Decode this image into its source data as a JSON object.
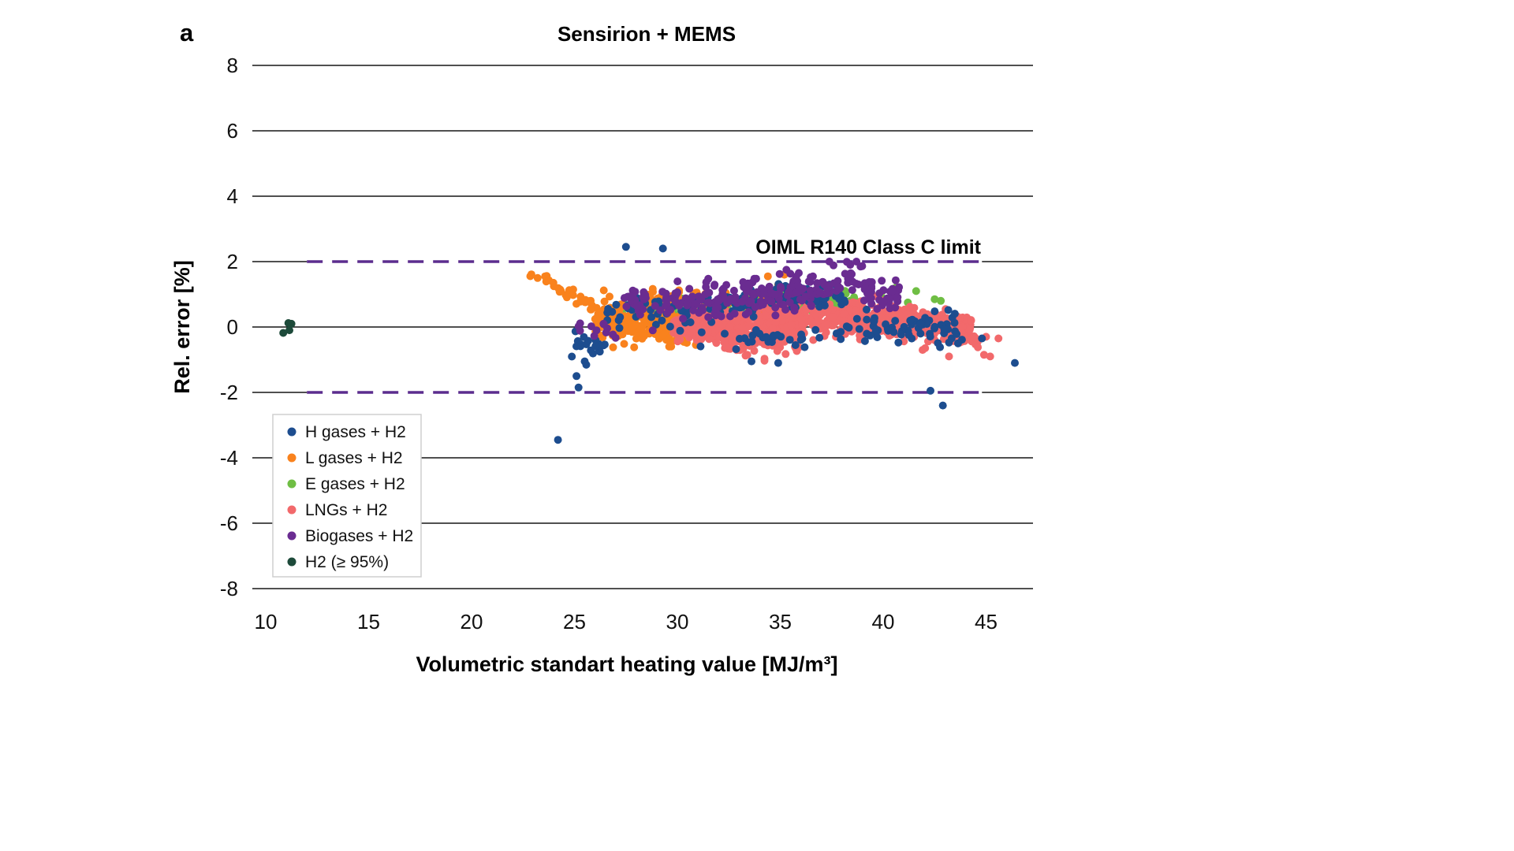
{
  "figure": {
    "panel_label": "a",
    "title": "Sensirion + MEMS"
  },
  "chart_data": {
    "type": "scatter",
    "title": "Sensirion + MEMS",
    "xlabel": "Volumetric standart heating value [MJ/m³]",
    "ylabel": "Rel. error [%]",
    "xlim": [
      9.35,
      47.3
    ],
    "ylim": [
      -8,
      8
    ],
    "xticks": [
      10,
      15,
      20,
      25,
      30,
      35,
      40,
      45
    ],
    "yticks": [
      -8,
      -6,
      -4,
      -2,
      0,
      2,
      4,
      6,
      8
    ],
    "grid": "horizontal",
    "legend_position": "lower left",
    "marker_radius_px": 5,
    "limit_lines": {
      "label": "OIML R140 Class C limit",
      "values": [
        2,
        -2
      ],
      "x_span": [
        12.0,
        44.8
      ],
      "color": "#5b2d8e",
      "style": "dashed"
    },
    "series": [
      {
        "name": "H gases + H2",
        "color": "#1d4d8f",
        "z": 4,
        "clusters": [
          {
            "n": 20,
            "x": [
              24.8,
              26.6
            ],
            "y": [
              -0.45,
              -0.55
            ],
            "sd": 0.22
          },
          {
            "n": 45,
            "x": [
              26.5,
              30.5
            ],
            "y": [
              0.45,
              0.6
            ],
            "sd": 0.28
          },
          {
            "n": 40,
            "x": [
              30.5,
              34.5
            ],
            "y": [
              0.7,
              0.8
            ],
            "sd": 0.22
          },
          {
            "n": 55,
            "x": [
              34.5,
              38.3
            ],
            "y": [
              0.9,
              1.0
            ],
            "sd": 0.2
          },
          {
            "n": 30,
            "x": [
              31.0,
              38.0
            ],
            "y": [
              -0.3,
              -0.4
            ],
            "sd": 0.12
          },
          {
            "n": 45,
            "x": [
              38.0,
              43.5
            ],
            "y": [
              0.25,
              0.0
            ],
            "sd": 0.22
          },
          {
            "n": 20,
            "x": [
              39.0,
              44.2
            ],
            "y": [
              -0.3,
              -0.4
            ],
            "sd": 0.15
          }
        ],
        "points": [
          [
            27.5,
            2.45
          ],
          [
            29.3,
            2.4
          ],
          [
            24.2,
            -3.45
          ],
          [
            25.2,
            -1.85
          ],
          [
            25.1,
            -1.5
          ],
          [
            25.5,
            -1.05
          ],
          [
            33.6,
            -1.05
          ],
          [
            34.9,
            -1.1
          ],
          [
            42.3,
            -1.95
          ],
          [
            42.9,
            -2.4
          ],
          [
            46.4,
            -1.1
          ],
          [
            44.8,
            -0.35
          ],
          [
            36.9,
            1.32
          ],
          [
            37.4,
            1.3
          ],
          [
            35.0,
            1.25
          ]
        ]
      },
      {
        "name": "L gases + H2",
        "color": "#f9821d",
        "z": 2,
        "clusters": [
          {
            "n": 30,
            "x": [
              22.8,
              26.2
            ],
            "y": [
              1.7,
              0.6
            ],
            "sd": 0.1
          },
          {
            "n": 200,
            "x": [
              26.0,
              30.6
            ],
            "y": [
              0.2,
              0.1
            ],
            "sd": 0.28
          },
          {
            "n": 45,
            "x": [
              28.5,
              31.5
            ],
            "y": [
              0.85,
              0.8
            ],
            "sd": 0.15
          },
          {
            "n": 55,
            "x": [
              30.5,
              35.8
            ],
            "y": [
              0.75,
              0.7
            ],
            "sd": 0.18
          }
        ],
        "points": [
          [
            34.4,
            1.55
          ],
          [
            35.2,
            1.6
          ],
          [
            34.9,
            1.3
          ],
          [
            30.9,
            -0.55
          ],
          [
            29.6,
            -0.6
          ],
          [
            27.9,
            -0.62
          ]
        ]
      },
      {
        "name": "E gases + H2",
        "color": "#6fbe44",
        "z": 1,
        "clusters": [
          {
            "n": 70,
            "x": [
              27.2,
              30.2
            ],
            "y": [
              0.55,
              0.5
            ],
            "sd": 0.15
          },
          {
            "n": 70,
            "x": [
              30.2,
              33.6
            ],
            "y": [
              0.45,
              0.5
            ],
            "sd": 0.15
          },
          {
            "n": 60,
            "x": [
              33.6,
              36.1
            ],
            "y": [
              0.55,
              0.65
            ],
            "sd": 0.17
          },
          {
            "n": 70,
            "x": [
              36.1,
              38.7
            ],
            "y": [
              0.8,
              0.65
            ],
            "sd": 0.18
          }
        ],
        "points": [
          [
            40.6,
            1.2
          ],
          [
            41.6,
            1.1
          ],
          [
            42.5,
            0.85
          ],
          [
            42.8,
            0.8
          ],
          [
            39.9,
            0.95
          ],
          [
            41.2,
            0.75
          ]
        ]
      },
      {
        "name": "LNGs + H2",
        "color": "#f2696b",
        "z": 3,
        "clusters": [
          {
            "n": 160,
            "x": [
              29.8,
              33.0
            ],
            "y": [
              0.05,
              0.0
            ],
            "sd": 0.26
          },
          {
            "n": 200,
            "x": [
              32.0,
              36.0
            ],
            "y": [
              -0.1,
              -0.15
            ],
            "sd": 0.33
          },
          {
            "n": 240,
            "x": [
              34.0,
              39.0
            ],
            "y": [
              0.25,
              0.3
            ],
            "sd": 0.28
          },
          {
            "n": 200,
            "x": [
              38.0,
              42.0
            ],
            "y": [
              0.25,
              0.15
            ],
            "sd": 0.24
          },
          {
            "n": 150,
            "x": [
              41.0,
              44.3
            ],
            "y": [
              0.1,
              0.0
            ],
            "sd": 0.2
          },
          {
            "n": 30,
            "x": [
              43.4,
              44.6
            ],
            "y": [
              -0.2,
              -0.35
            ],
            "sd": 0.18
          }
        ],
        "points": [
          [
            44.9,
            -0.85
          ],
          [
            45.2,
            -0.9
          ],
          [
            44.6,
            -0.62
          ],
          [
            45.6,
            -0.35
          ],
          [
            43.2,
            -0.9
          ],
          [
            33.4,
            -0.85
          ],
          [
            45.0,
            -0.3
          ]
        ]
      },
      {
        "name": "Biogases + H2",
        "color": "#6a2c91",
        "z": 5,
        "clusters": [
          {
            "n": 10,
            "x": [
              25.0,
              27.3
            ],
            "y": [
              -0.05,
              -0.25
            ],
            "sd": 0.15
          },
          {
            "n": 55,
            "x": [
              27.3,
              31.0
            ],
            "y": [
              0.7,
              0.8
            ],
            "sd": 0.22
          },
          {
            "n": 75,
            "x": [
              31.0,
              34.5
            ],
            "y": [
              0.85,
              0.95
            ],
            "sd": 0.26
          },
          {
            "n": 45,
            "x": [
              34.5,
              36.6
            ],
            "y": [
              1.0,
              1.05
            ],
            "sd": 0.3
          },
          {
            "n": 35,
            "x": [
              36.6,
              39.0
            ],
            "y": [
              1.15,
              1.6
            ],
            "sd": 0.25
          },
          {
            "n": 45,
            "x": [
              39.0,
              40.8
            ],
            "y": [
              1.1,
              1.0
            ],
            "sd": 0.2
          }
        ],
        "points": [
          [
            35.3,
            1.75
          ],
          [
            35.9,
            1.65
          ],
          [
            38.4,
            1.9
          ],
          [
            38.7,
            2.0
          ],
          [
            38.9,
            1.85
          ],
          [
            25.2,
            0.02
          ],
          [
            27.0,
            -0.33
          ]
        ]
      },
      {
        "name": "H2 (≥ 95%)",
        "color": "#1d4a3a",
        "z": 6,
        "clusters": [],
        "points": [
          [
            10.85,
            -0.18
          ],
          [
            11.1,
            0.12
          ],
          [
            11.25,
            0.1
          ],
          [
            11.15,
            -0.1
          ]
        ]
      }
    ]
  }
}
